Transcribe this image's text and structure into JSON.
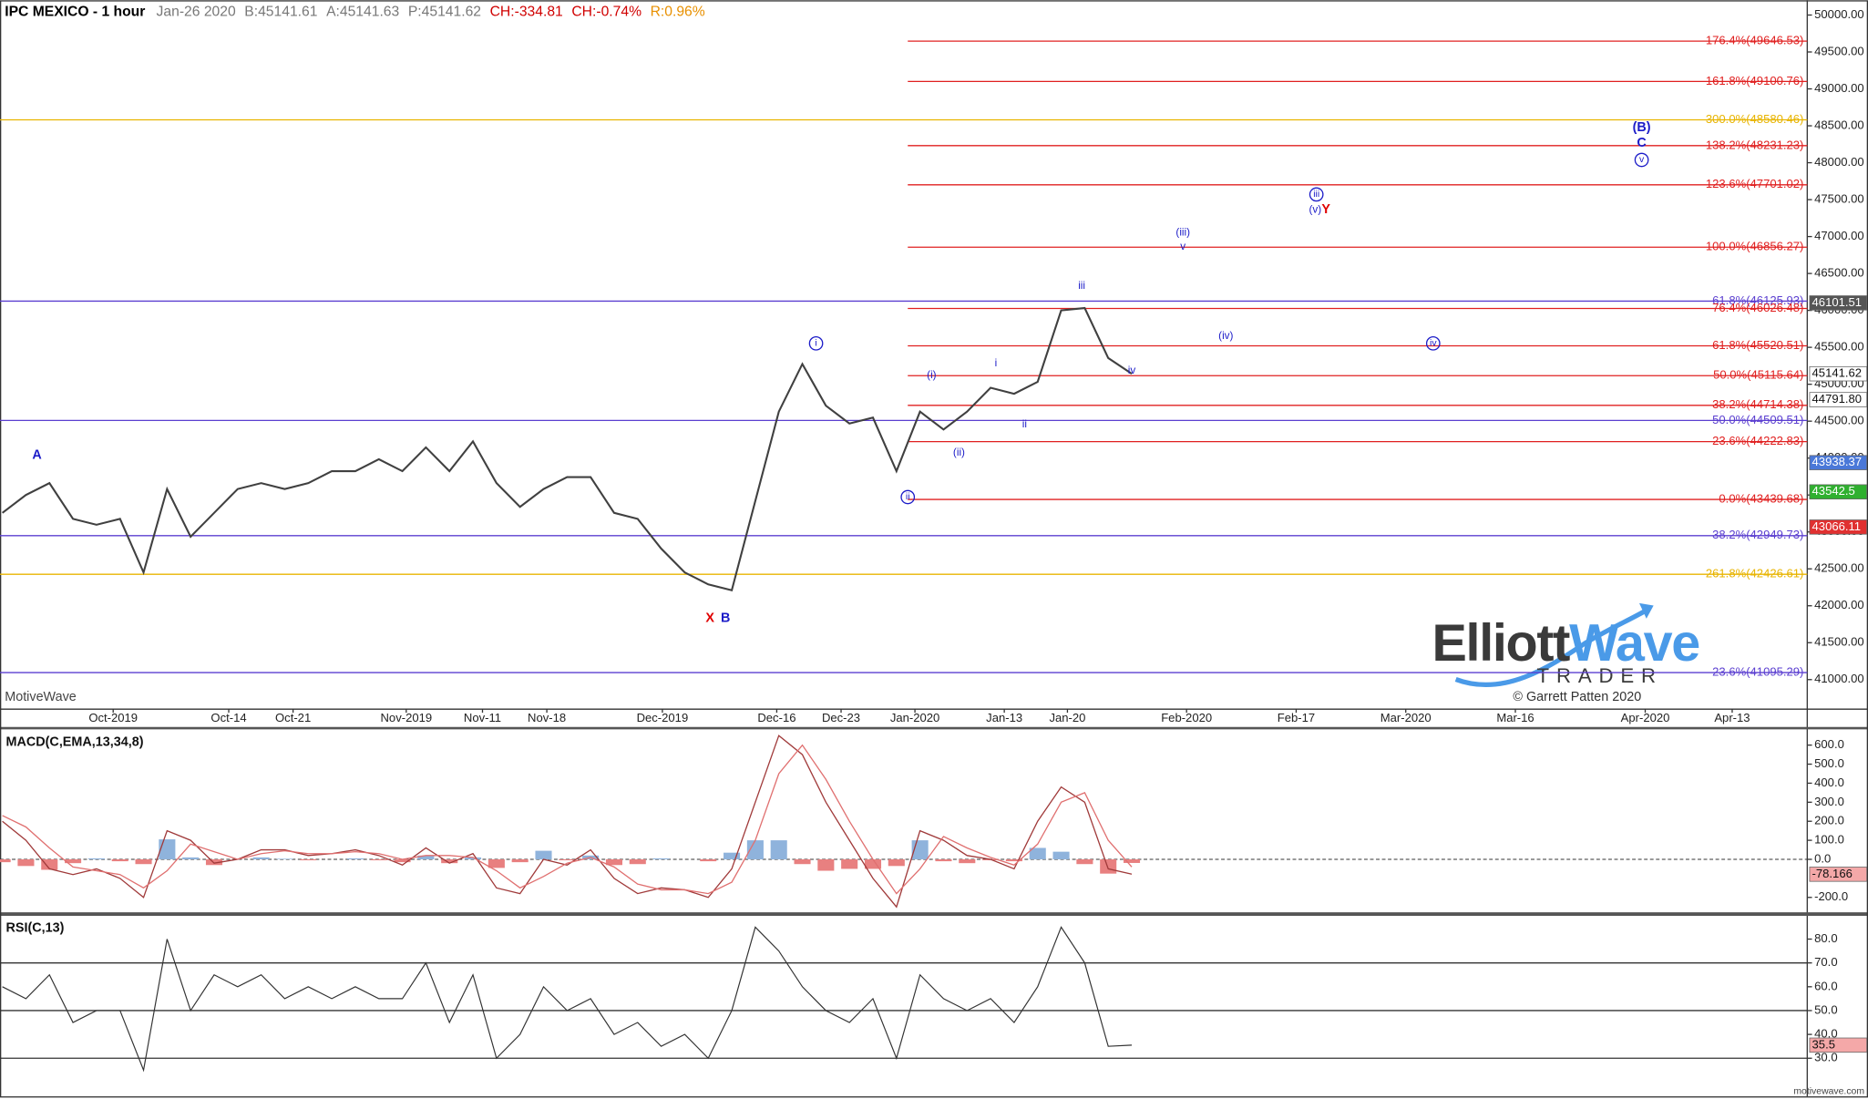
{
  "header": {
    "symbol": "IPC MEXICO - 1 hour",
    "date": "Jan-26 2020",
    "bid": "B:45141.61",
    "ask": "A:45141.63",
    "price": "P:45141.62",
    "change": "CH:-334.81",
    "change_pct": "CH:-0.74%",
    "range": "R:0.96%"
  },
  "watermark": {
    "logo_a": "Elliott",
    "logo_b": "Wave",
    "logo_bottom": "TRADER",
    "copyright": "© Garrett Patten 2020",
    "platform": "MotiveWave",
    "site": "motivewave.com"
  },
  "chart_data": [
    {
      "type": "line",
      "color": "#404040",
      "values": [
        43258,
        43500,
        43661,
        43177,
        43097,
        43177,
        42452,
        43581,
        42935,
        43258,
        43581,
        43661,
        43581,
        43661,
        43823,
        43823,
        43984,
        43823,
        44145,
        43823,
        44226,
        43661,
        43339,
        43581,
        43742,
        43742,
        43258,
        43177,
        42774,
        42452,
        42290,
        42210,
        43419,
        44629,
        45274,
        44710,
        44468,
        44548,
        43823,
        44629,
        44387,
        44629,
        44952,
        44871,
        45032,
        46000,
        46032,
        45355,
        45141.62
      ],
      "ylim": [
        40600,
        50200
      ],
      "yticks": [
        {
          "value": 41000,
          "label": "41000.00"
        },
        {
          "value": 41500,
          "label": "41500.00"
        },
        {
          "value": 42000,
          "label": "42000.00"
        },
        {
          "value": 42500,
          "label": "42500.00"
        },
        {
          "value": 43000,
          "label": "43000.00"
        },
        {
          "value": 43500,
          "label": "43500.00"
        },
        {
          "value": 44000,
          "label": "44000.00"
        },
        {
          "value": 44500,
          "label": "44500.00"
        },
        {
          "value": 45000,
          "label": "45000.00"
        },
        {
          "value": 45500,
          "label": "45500.00"
        },
        {
          "value": 46000,
          "label": "46000.00"
        },
        {
          "value": 46500,
          "label": "46500.00"
        },
        {
          "value": 47000,
          "label": "47000.00"
        },
        {
          "value": 47500,
          "label": "47500.00"
        },
        {
          "value": 48000,
          "label": "48000.00"
        },
        {
          "value": 48500,
          "label": "48500.00"
        },
        {
          "value": 49000,
          "label": "49000.00"
        },
        {
          "value": 49500,
          "label": "49500.00"
        },
        {
          "value": 50000,
          "label": "50000.00"
        }
      ],
      "x_labels": [
        "Oct-2019",
        "Oct-14",
        "Oct-21",
        "Nov-2019",
        "Nov-11",
        "Nov-18",
        "Dec-2019",
        "Dec-16",
        "Dec-23",
        "Jan-2020",
        "Jan-13",
        "Jan-20",
        "Feb-2020",
        "Feb-17",
        "Mar-2020",
        "Mar-16",
        "Apr-2020",
        "Apr-13"
      ],
      "levels": [
        {
          "label": "176.4%(49646.53)",
          "value": 49646.53,
          "color": "#e02020",
          "span": "right"
        },
        {
          "label": "161.8%(49100.76)",
          "value": 49100.76,
          "color": "#e02020",
          "span": "right"
        },
        {
          "label": "300.0%(48580.46)",
          "value": 48580.46,
          "color": "#e8b400",
          "span": "full"
        },
        {
          "label": "138.2%(48231.23)",
          "value": 48231.23,
          "color": "#e02020",
          "span": "right"
        },
        {
          "label": "123.6%(47701.02)",
          "value": 47701.02,
          "color": "#e02020",
          "span": "right"
        },
        {
          "label": "100.0%(46856.27)",
          "value": 46856.27,
          "color": "#e02020",
          "span": "right"
        },
        {
          "label": "61.8%(46125.93)",
          "value": 46125.93,
          "color": "#5b3fd0",
          "span": "full"
        },
        {
          "label": "76.4%(46026.48)",
          "value": 46026.48,
          "color": "#e02020",
          "span": "right"
        },
        {
          "label": "61.8%(45520.51)",
          "value": 45520.51,
          "color": "#e02020",
          "span": "right"
        },
        {
          "label": "50.0%(45115.64)",
          "value": 45115.64,
          "color": "#e02020",
          "span": "right"
        },
        {
          "label": "38.2%(44714.38)",
          "value": 44714.38,
          "color": "#e02020",
          "span": "right"
        },
        {
          "label": "50.0%(44509.51)",
          "value": 44509.51,
          "color": "#5b3fd0",
          "span": "full"
        },
        {
          "label": "23.6%(44222.83)",
          "value": 44222.83,
          "color": "#e02020",
          "span": "right"
        },
        {
          "label": "0.0%(43439.68)",
          "value": 43439.68,
          "color": "#e02020",
          "span": "right"
        },
        {
          "label": "38.2%(42949.73)",
          "value": 42949.73,
          "color": "#5b3fd0",
          "span": "full"
        },
        {
          "label": "261.8%(42426.61)",
          "value": 42426.61,
          "color": "#e8b400",
          "span": "full"
        },
        {
          "label": "23.6%(41095.29)",
          "value": 41095.29,
          "color": "#5b3fd0",
          "span": "full"
        }
      ],
      "markers": [
        {
          "value": 46101.51,
          "color": "#555555"
        },
        {
          "value": 45141.62,
          "color": "#ffffff"
        },
        {
          "value": 44791.8,
          "label": "44791.80",
          "color": "#ffffff"
        },
        {
          "value": 43938.37,
          "color": "#4a78d8"
        },
        {
          "value": 43542.5,
          "color": "#2fb02f"
        },
        {
          "value": 43066.11,
          "color": "#e03030"
        }
      ],
      "annotations": [
        {
          "text": "A",
          "color": "#1c1cc8",
          "circled": false
        },
        {
          "text": "X",
          "color": "#e00000",
          "circled": false
        },
        {
          "text": "B",
          "color": "#1c1cc8",
          "circled": false
        },
        {
          "text": "i",
          "color": "#1c1cc8",
          "circled": true
        },
        {
          "text": "ii",
          "color": "#1c1cc8",
          "circled": true
        },
        {
          "text": "(i)",
          "color": "#1c1cc8",
          "circled": false
        },
        {
          "text": "(ii)",
          "color": "#1c1cc8",
          "circled": false
        },
        {
          "text": "i",
          "color": "#1c1cc8",
          "circled": false
        },
        {
          "text": "ii",
          "color": "#1c1cc8",
          "circled": false
        },
        {
          "text": "iii",
          "color": "#1c1cc8",
          "circled": false
        },
        {
          "text": "iv",
          "color": "#1c1cc8",
          "circled": false
        },
        {
          "text": "(iii)",
          "color": "#1c1cc8",
          "circled": false
        },
        {
          "text": "v",
          "color": "#1c1cc8",
          "circled": false
        },
        {
          "text": "(iv)",
          "color": "#1c1cc8",
          "circled": false
        },
        {
          "text": "iii",
          "color": "#1c1cc8",
          "circled": true
        },
        {
          "text": "(v)",
          "color": "#1c1cc8",
          "circled": false
        },
        {
          "text": "Y",
          "color": "#e00000",
          "circled": false
        },
        {
          "text": "iv",
          "color": "#1c1cc8",
          "circled": true
        },
        {
          "text": "(B)",
          "color": "#1c1cc8",
          "circled": false
        },
        {
          "text": "C",
          "color": "#1c1cc8",
          "circled": false
        },
        {
          "text": "v",
          "color": "#1c1cc8",
          "circled": true
        }
      ]
    },
    {
      "type": "macd",
      "title": "MACD(C,EMA,13,34,8)",
      "series": [
        {
          "color": "#a03a3a",
          "values": [
            200,
            100,
            -50,
            -80,
            -50,
            -100,
            -200,
            150,
            100,
            -20,
            0,
            50,
            50,
            20,
            30,
            50,
            20,
            -30,
            60,
            -20,
            30,
            -150,
            -180,
            0,
            -30,
            50,
            -100,
            -180,
            -150,
            -160,
            -200,
            -50,
            300,
            650,
            550,
            300,
            100,
            -100,
            -250,
            150,
            100,
            20,
            0,
            -50,
            200,
            380,
            300,
            -50,
            -78
          ]
        },
        {
          "color": "#e07070",
          "values": [
            230,
            170,
            60,
            -40,
            -60,
            -80,
            -150,
            -60,
            80,
            40,
            0,
            30,
            45,
            30,
            30,
            40,
            30,
            0,
            20,
            20,
            10,
            -60,
            -150,
            -90,
            -20,
            10,
            -40,
            -130,
            -160,
            -160,
            -180,
            -120,
            100,
            450,
            600,
            420,
            200,
            0,
            -180,
            -50,
            120,
            60,
            10,
            -30,
            80,
            300,
            350,
            100,
            -40
          ]
        }
      ],
      "histogram": {
        "positive_color": "#8fb3dc",
        "negative_color": "#e88080",
        "values": [
          -15,
          -35,
          -55,
          -20,
          5,
          -10,
          -25,
          105,
          10,
          -30,
          0,
          10,
          3,
          -5,
          0,
          5,
          -5,
          -15,
          20,
          -20,
          10,
          -45,
          -15,
          45,
          -5,
          20,
          -30,
          -25,
          5,
          0,
          -10,
          35,
          100,
          100,
          -25,
          -60,
          -50,
          -50,
          -35,
          100,
          -10,
          -20,
          -5,
          -10,
          60,
          40,
          -25,
          -75,
          -19
        ]
      },
      "ylim": [
        -275,
        670
      ],
      "yticks": [
        {
          "value": -200,
          "label": "-200.0"
        },
        {
          "value": 0,
          "label": "0.0"
        },
        {
          "value": 100,
          "label": "100.0"
        },
        {
          "value": 200,
          "label": "200.0"
        },
        {
          "value": 300,
          "label": "300.0"
        },
        {
          "value": 400,
          "label": "400.0"
        },
        {
          "value": 500,
          "label": "500.0"
        },
        {
          "value": 600,
          "label": "600.0"
        }
      ],
      "levels": [
        0
      ],
      "markers": [
        {
          "value": -78.166,
          "color": "#f4a8a8"
        }
      ]
    },
    {
      "type": "line",
      "title": "RSI(C,13)",
      "color": "#333333",
      "values": [
        60,
        55,
        65,
        45,
        50,
        50,
        25,
        80,
        50,
        65,
        60,
        65,
        55,
        60,
        55,
        60,
        55,
        55,
        70,
        45,
        65,
        30,
        40,
        60,
        50,
        55,
        40,
        45,
        35,
        40,
        30,
        50,
        85,
        75,
        60,
        50,
        45,
        55,
        30,
        65,
        55,
        50,
        55,
        45,
        60,
        85,
        70,
        35,
        35.5
      ],
      "ylim": [
        14,
        89
      ],
      "yticks": [
        {
          "value": 30,
          "label": "30.0"
        },
        {
          "value": 40,
          "label": "40.0"
        },
        {
          "value": 50,
          "label": "50.0"
        },
        {
          "value": 60,
          "label": "60.0"
        },
        {
          "value": 70,
          "label": "70.0"
        },
        {
          "value": 80,
          "label": "80.0"
        }
      ],
      "levels": [
        30,
        50,
        70
      ],
      "markers": [
        {
          "value": 35.5,
          "color": "#f4a8a8"
        }
      ]
    }
  ]
}
